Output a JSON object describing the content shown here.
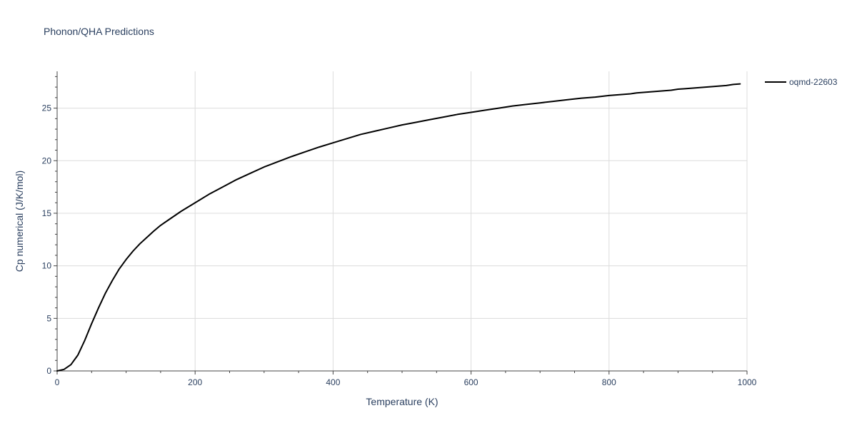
{
  "chart_data": {
    "type": "line",
    "title": "Phonon/QHA Predictions",
    "xlabel": "Temperature (K)",
    "ylabel": "Cp numerical (J/K/mol)",
    "xlim": [
      0,
      1000
    ],
    "ylim": [
      0,
      28.5
    ],
    "x_ticks": [
      0,
      200,
      400,
      600,
      800,
      1000
    ],
    "y_ticks": [
      0,
      5,
      10,
      15,
      20,
      25
    ],
    "grid": true,
    "legend_position": "top-right",
    "series": [
      {
        "name": "oqmd-22603",
        "color": "#000000",
        "x": [
          0,
          10,
          20,
          30,
          40,
          50,
          60,
          70,
          80,
          90,
          100,
          110,
          120,
          130,
          140,
          150,
          160,
          170,
          180,
          190,
          200,
          220,
          240,
          260,
          280,
          300,
          320,
          340,
          360,
          380,
          400,
          420,
          440,
          460,
          480,
          500,
          520,
          540,
          560,
          580,
          600,
          620,
          640,
          660,
          680,
          700,
          720,
          740,
          760,
          780,
          800,
          810,
          820,
          830,
          840,
          850,
          860,
          870,
          880,
          890,
          900,
          910,
          920,
          930,
          940,
          950,
          960,
          970,
          980,
          990
        ],
        "y": [
          0,
          0.15,
          0.6,
          1.5,
          2.9,
          4.5,
          6.0,
          7.4,
          8.6,
          9.7,
          10.6,
          11.4,
          12.1,
          12.7,
          13.3,
          13.85,
          14.3,
          14.75,
          15.2,
          15.6,
          16.0,
          16.8,
          17.5,
          18.2,
          18.8,
          19.4,
          19.9,
          20.4,
          20.85,
          21.3,
          21.7,
          22.1,
          22.5,
          22.8,
          23.1,
          23.4,
          23.65,
          23.9,
          24.15,
          24.4,
          24.6,
          24.8,
          25.0,
          25.2,
          25.35,
          25.5,
          25.65,
          25.8,
          25.95,
          26.05,
          26.2,
          26.25,
          26.3,
          26.35,
          26.45,
          26.5,
          26.55,
          26.6,
          26.65,
          26.7,
          26.8,
          26.85,
          26.9,
          26.95,
          27.0,
          27.05,
          27.1,
          27.15,
          27.25,
          27.3
        ]
      }
    ]
  }
}
